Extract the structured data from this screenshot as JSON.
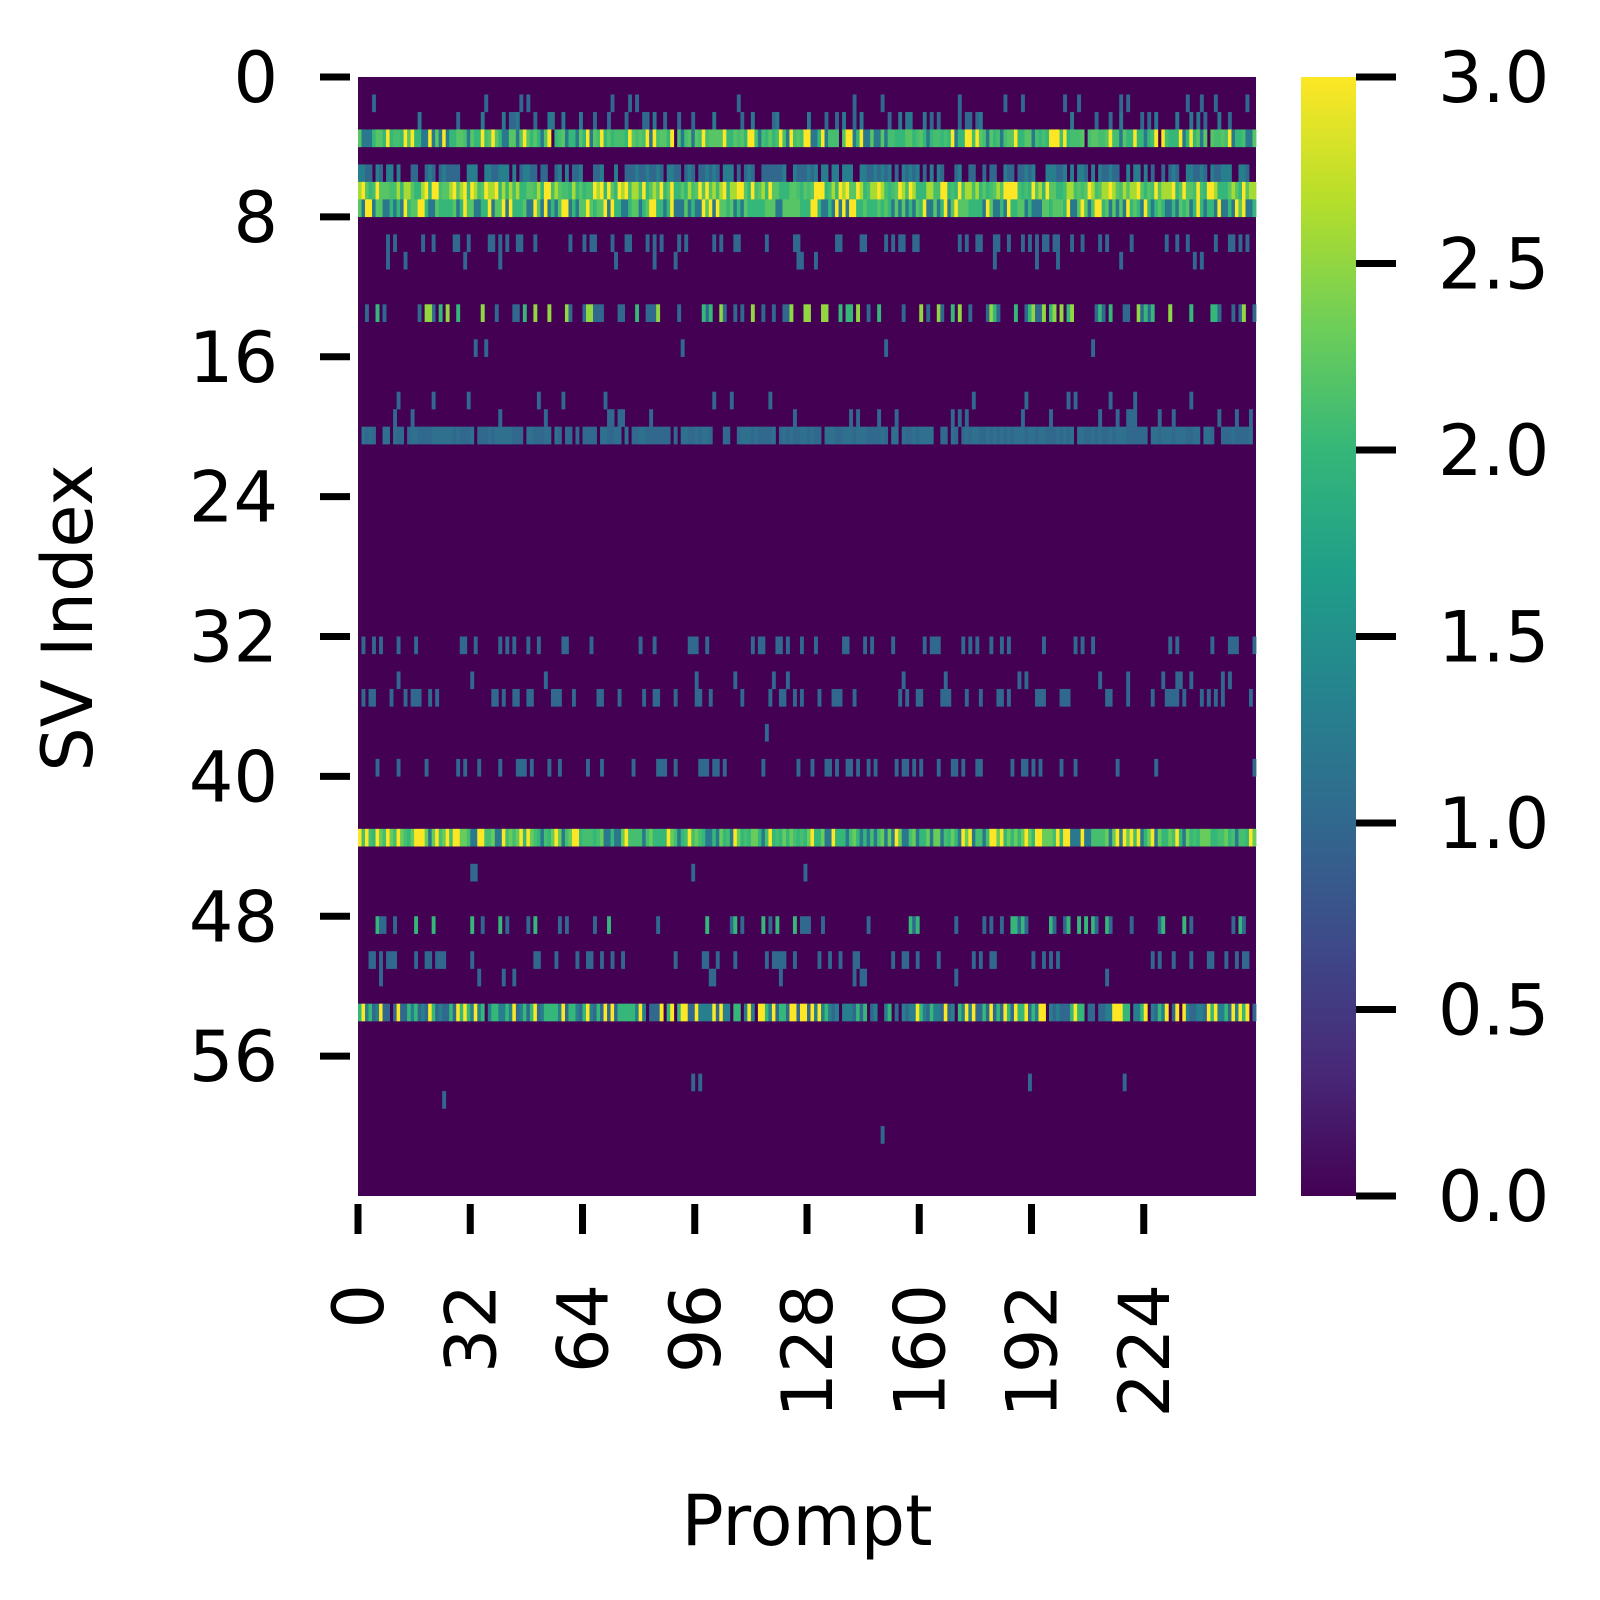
{
  "chart_data": {
    "type": "heatmap",
    "xlabel": "Prompt",
    "ylabel": "SV Index",
    "n_cols": 256,
    "n_rows": 64,
    "x_ticks": [
      "0",
      "32",
      "64",
      "96",
      "128",
      "160",
      "192",
      "224"
    ],
    "y_ticks": [
      "0",
      "8",
      "16",
      "24",
      "32",
      "40",
      "48",
      "56"
    ],
    "colorbar": {
      "colormap": "viridis",
      "range": [
        0.0,
        3.0
      ],
      "ticks": [
        "0.0",
        "0.5",
        "1.0",
        "1.5",
        "2.0",
        "2.5",
        "3.0"
      ]
    },
    "colormap_stops": [
      "#440154",
      "#482878",
      "#3e4989",
      "#31688e",
      "#26828e",
      "#1f9e89",
      "#35b779",
      "#6ece58",
      "#b5de2b",
      "#fde725"
    ],
    "background_value": 0.0,
    "rows": [
      {
        "index": 1,
        "density": 0.1,
        "values": [
          1.0
        ],
        "seed": 1
      },
      {
        "index": 2,
        "density": 0.22,
        "values": [
          1.0,
          1.2
        ],
        "seed": 2
      },
      {
        "index": 3,
        "density": 0.97,
        "values": [
          1.2,
          2.0,
          2.1,
          2.2,
          3.0
        ],
        "seed": 3
      },
      {
        "index": 4,
        "density": 0.0,
        "values": [
          1.0
        ],
        "seed": 4
      },
      {
        "index": 5,
        "density": 0.7,
        "values": [
          1.0,
          1.3
        ],
        "seed": 5
      },
      {
        "index": 6,
        "density": 1.0,
        "values": [
          2.0,
          2.1,
          2.2,
          2.6,
          3.0
        ],
        "seed": 6
      },
      {
        "index": 7,
        "density": 1.0,
        "values": [
          1.2,
          2.0,
          2.2,
          3.0
        ],
        "seed": 7
      },
      {
        "index": 9,
        "density": 0.28,
        "values": [
          1.0
        ],
        "seed": 9
      },
      {
        "index": 10,
        "density": 0.05,
        "values": [
          1.0
        ],
        "seed": 10
      },
      {
        "index": 13,
        "density": 0.05,
        "values": [
          1.0
        ],
        "seed": 13
      },
      {
        "index": 13,
        "density": 0.38,
        "values": [
          1.0,
          2.0,
          2.5
        ],
        "seed": 14
      },
      {
        "index": 15,
        "density": 0.01,
        "values": [
          1.0
        ],
        "seed": 15
      },
      {
        "index": 18,
        "density": 0.05,
        "values": [
          1.0
        ],
        "seed": 18
      },
      {
        "index": 19,
        "density": 0.1,
        "values": [
          1.0
        ],
        "seed": 19
      },
      {
        "index": 20,
        "density": 0.85,
        "values": [
          1.0,
          1.1
        ],
        "seed": 20
      },
      {
        "index": 32,
        "density": 0.22,
        "values": [
          1.0
        ],
        "seed": 32
      },
      {
        "index": 34,
        "density": 0.05,
        "values": [
          1.0
        ],
        "seed": 34
      },
      {
        "index": 35,
        "density": 0.28,
        "values": [
          1.0
        ],
        "seed": 35
      },
      {
        "index": 37,
        "density": 0.01,
        "values": [
          1.0
        ],
        "seed": 37
      },
      {
        "index": 39,
        "density": 0.22,
        "values": [
          1.0
        ],
        "seed": 39
      },
      {
        "index": 43,
        "density": 1.0,
        "values": [
          1.2,
          2.0,
          2.1,
          2.3,
          3.0
        ],
        "seed": 43
      },
      {
        "index": 45,
        "density": 0.02,
        "values": [
          1.0
        ],
        "seed": 45
      },
      {
        "index": 48,
        "density": 0.26,
        "values": [
          1.0,
          2.0
        ],
        "seed": 48
      },
      {
        "index": 50,
        "density": 0.24,
        "values": [
          1.0
        ],
        "seed": 50
      },
      {
        "index": 51,
        "density": 0.03,
        "values": [
          1.0
        ],
        "seed": 51
      },
      {
        "index": 53,
        "density": 0.9,
        "values": [
          1.0,
          1.3,
          2.0,
          3.0
        ],
        "seed": 53
      },
      {
        "index": 57,
        "density": 0.01,
        "values": [
          1.0
        ],
        "seed": 57
      },
      {
        "index": 58,
        "density": 0.01,
        "values": [
          1.0
        ],
        "seed": 58
      },
      {
        "index": 59,
        "density": 0.01,
        "values": [
          1.0
        ],
        "seed": 59
      },
      {
        "index": 60,
        "density": 0.01,
        "values": [
          1.0
        ],
        "seed": 60
      }
    ]
  }
}
